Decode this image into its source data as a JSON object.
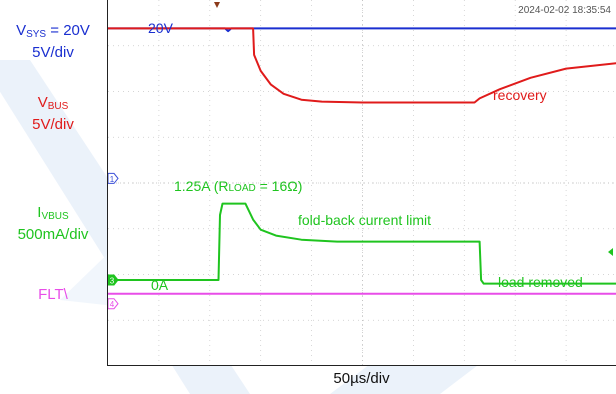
{
  "timestamp": "2024-02-02 18:35:54",
  "left_labels": {
    "vsys": {
      "main": "V",
      "sub": "SYS",
      "rest": " = 20V",
      "scale": "5V/div",
      "color": "#1a2fd0"
    },
    "vbus": {
      "main": "V",
      "sub": "BUS",
      "scale": "5V/div",
      "color": "#e01b1b"
    },
    "ivbus": {
      "main": "I",
      "sub": "VBUS",
      "scale": "500mA/div",
      "color": "#1fc41f"
    },
    "flt": {
      "main": "FLT\\",
      "color": "#e84de8"
    }
  },
  "annotations": {
    "v20": "20V",
    "recovery": "recovery",
    "i_peak_prefix": "1.25A (R",
    "i_peak_sub": "LOAD",
    "i_peak_suffix": " = 16Ω)",
    "foldback": "fold-back current limit",
    "zero": "0A",
    "load_removed": "load removed"
  },
  "channel_markers": [
    "1",
    "3",
    "4"
  ],
  "chart_data": {
    "type": "line",
    "xlabel": "50µs/div",
    "x_unit": "div",
    "xlim": [
      0,
      10
    ],
    "ylim_div": [
      0,
      8
    ],
    "series": [
      {
        "name": "VSYS",
        "color": "#1a2fd0",
        "x": [
          0,
          2.3,
          2.36,
          2.42,
          10
        ],
        "y": [
          7.38,
          7.38,
          7.32,
          7.38,
          7.38
        ]
      },
      {
        "name": "VBUS",
        "color": "#e01b1b",
        "x": [
          0,
          2.85,
          2.87,
          3.0,
          3.2,
          3.45,
          3.8,
          4.2,
          5.0,
          7.2,
          7.3,
          7.7,
          8.3,
          9.0,
          10
        ],
        "y": [
          7.38,
          7.38,
          6.8,
          6.45,
          6.15,
          5.95,
          5.82,
          5.78,
          5.76,
          5.76,
          5.85,
          6.05,
          6.3,
          6.5,
          6.62
        ]
      },
      {
        "name": "IVBUS",
        "color": "#1fc41f",
        "x": [
          0,
          2.17,
          2.2,
          2.25,
          2.7,
          2.85,
          3.0,
          3.3,
          3.8,
          4.5,
          7.3,
          7.33,
          7.38,
          10
        ],
        "y": [
          1.88,
          1.88,
          3.3,
          3.55,
          3.55,
          3.2,
          2.98,
          2.85,
          2.76,
          2.72,
          2.72,
          1.88,
          1.8,
          1.8
        ]
      },
      {
        "name": "FLT",
        "color": "#e84de8",
        "x": [
          0,
          10
        ],
        "y": [
          1.58,
          1.58
        ]
      }
    ]
  }
}
